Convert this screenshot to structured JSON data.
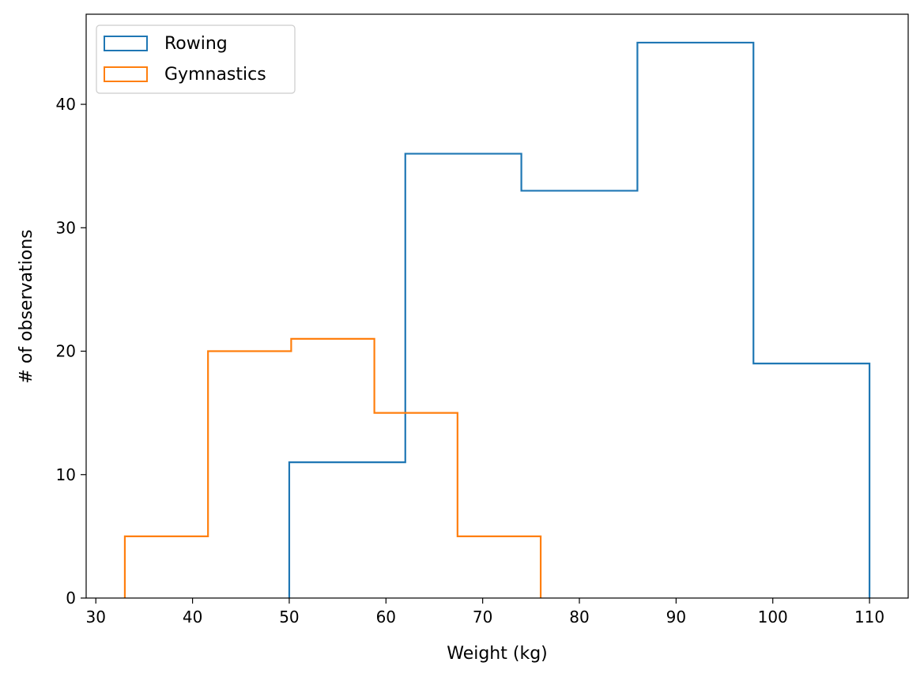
{
  "chart_data": {
    "type": "histogram",
    "xlabel": "Weight (kg)",
    "ylabel": "# of observations",
    "xlim": [
      29,
      114
    ],
    "ylim": [
      0,
      47.3
    ],
    "xticks": [
      30,
      40,
      50,
      60,
      70,
      80,
      90,
      100,
      110
    ],
    "yticks": [
      0,
      10,
      20,
      30,
      40
    ],
    "grid": false,
    "legend_placement": "top-left",
    "series": [
      {
        "name": "Rowing",
        "color": "#1f77b4",
        "bin_edges": [
          50,
          62,
          74,
          86,
          98,
          110
        ],
        "counts": [
          11,
          36,
          33,
          45,
          19
        ]
      },
      {
        "name": "Gymnastics",
        "color": "#ff7f0e",
        "bin_edges": [
          33,
          41.6,
          50.2,
          58.8,
          67.4,
          76
        ],
        "counts": [
          5,
          20,
          21,
          15,
          5
        ]
      }
    ]
  }
}
